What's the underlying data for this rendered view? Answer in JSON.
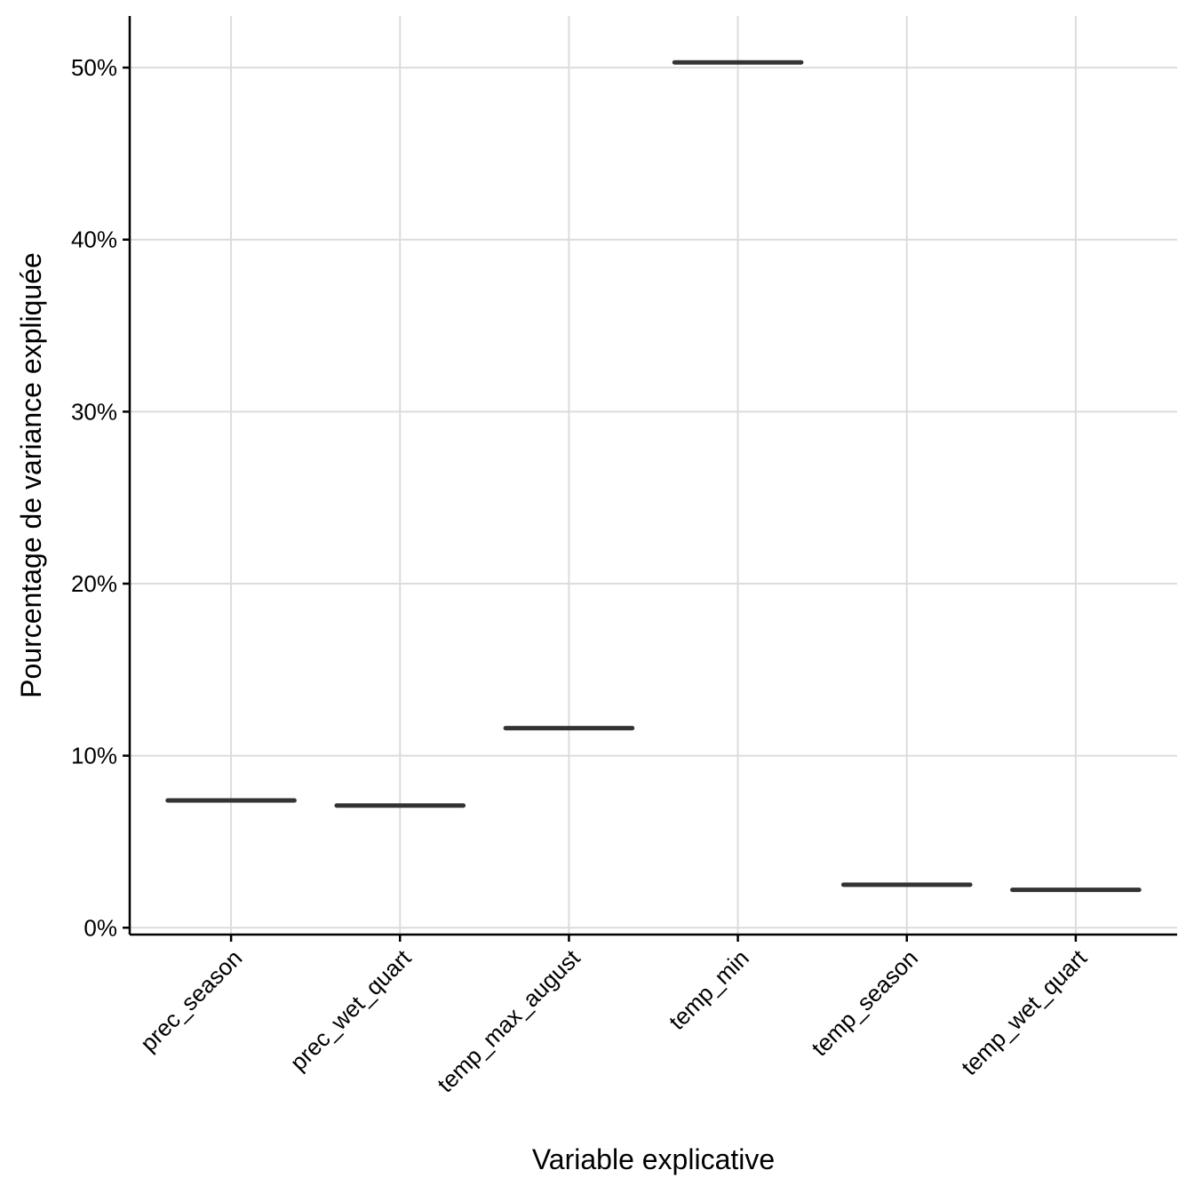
{
  "chart_data": {
    "type": "boxplot",
    "categories": [
      "prec_season",
      "prec_wet_quart",
      "temp_max_august",
      "temp_min",
      "temp_season",
      "temp_wet_quart"
    ],
    "values": [
      7.4,
      7.1,
      11.6,
      50.3,
      2.5,
      2.2
    ],
    "ylim": [
      -0.4,
      53
    ],
    "yticks": [
      0,
      10,
      20,
      30,
      40,
      50
    ],
    "ytick_labels": [
      "0%",
      "10%",
      "20%",
      "30%",
      "40%",
      "50%"
    ],
    "xlabel": "Variable explicative",
    "ylabel": "Pourcentage de variance expliquée",
    "grid": true,
    "legend": "none",
    "colors": {
      "median": "#333333",
      "grid": "#dcdcdc",
      "axis": "#000000"
    }
  }
}
